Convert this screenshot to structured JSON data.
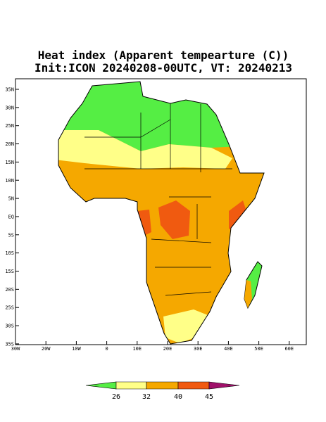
{
  "title": [
    "Heat index (Apparent tempearture (C))",
    "Init:ICON 20240208-00UTC, VT: 20240213"
  ],
  "map": {
    "lon_labels": [
      "30W",
      "20W",
      "10W",
      "0",
      "10E",
      "20E",
      "30E",
      "40E",
      "50E",
      "60E"
    ],
    "lat_labels": [
      "35N",
      "30N",
      "25N",
      "20N",
      "15N",
      "10N",
      "5N",
      "EQ",
      "5S",
      "10S",
      "15S",
      "20S",
      "25S",
      "30S",
      "35S"
    ]
  },
  "colorbar": {
    "labels": [
      26,
      32,
      40,
      45
    ],
    "colors": [
      "#55ee44",
      "#ffff88",
      "#f5a800",
      "#f05a10",
      "#a0106a"
    ]
  }
}
